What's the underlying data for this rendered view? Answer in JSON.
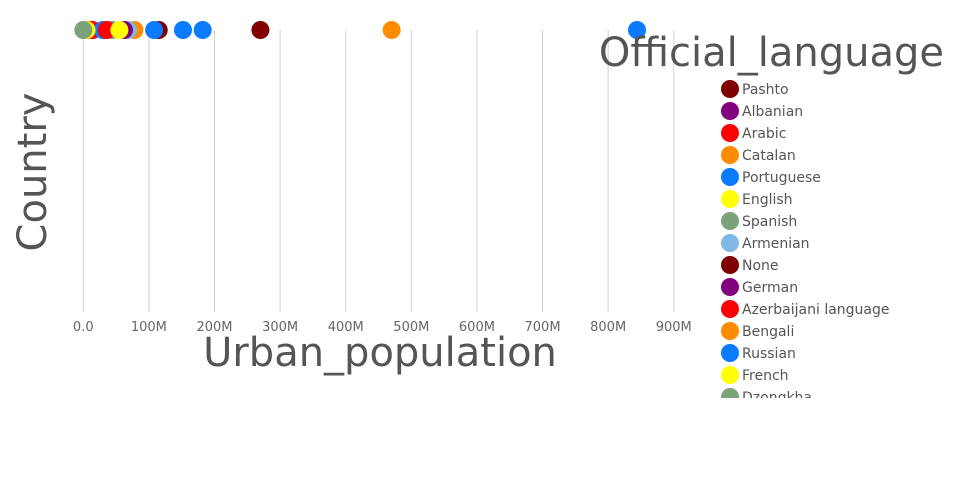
{
  "chart_data": {
    "type": "scatter",
    "xlabel": "Urban_population",
    "ylabel": "Country",
    "legend_title": "Official_language",
    "legend_position": "right",
    "grid": true,
    "xlim": [
      -5000000,
      940000000
    ],
    "xticks": [
      "0.0",
      "100M",
      "200M",
      "300M",
      "400M",
      "500M",
      "600M",
      "700M",
      "800M",
      "900M"
    ],
    "series": [
      {
        "name": "Pashto",
        "color": "#800000",
        "values": [
          9000000
        ]
      },
      {
        "name": "Albanian",
        "color": "#800080",
        "values": [
          2000000
        ]
      },
      {
        "name": "Arabic",
        "color": "#ff0000",
        "values": [
          10000000,
          14000000
        ]
      },
      {
        "name": "Catalan",
        "color": "#ff8c00",
        "values": [
          78000000
        ]
      },
      {
        "name": "Portuguese",
        "color": "#0a7bff",
        "values": [
          30000000,
          152000000
        ]
      },
      {
        "name": "English",
        "color": "#ffff00",
        "values": [
          1000000,
          5000000
        ]
      },
      {
        "name": "Spanish",
        "color": "#7aa37a",
        "values": [
          44000000
        ]
      },
      {
        "name": "Armenian",
        "color": "#80b8e8",
        "values": [
          68000000
        ]
      },
      {
        "name": "None",
        "color": "#800000",
        "values": [
          115000000,
          270000000
        ]
      },
      {
        "name": "German",
        "color": "#800080",
        "values": [
          62000000
        ]
      },
      {
        "name": "Azerbaijani language",
        "color": "#ff0000",
        "values": [
          36000000
        ]
      },
      {
        "name": "Bengali",
        "color": "#ff8c00",
        "values": [
          470000000
        ]
      },
      {
        "name": "Russian",
        "color": "#0a7bff",
        "values": [
          108000000,
          182000000,
          844000000
        ]
      },
      {
        "name": "French",
        "color": "#ffff00",
        "values": [
          55000000
        ]
      },
      {
        "name": "Dzongkha",
        "color": "#7aa37a",
        "values": [
          100000
        ]
      }
    ]
  }
}
